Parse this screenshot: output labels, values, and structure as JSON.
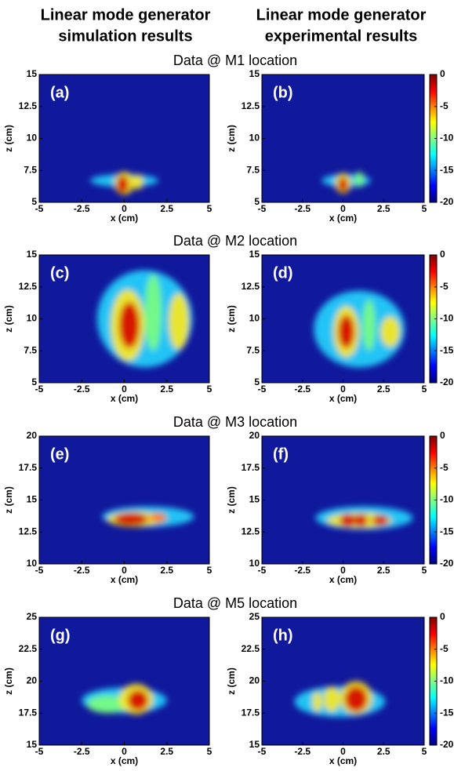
{
  "column_titles": [
    [
      "Linear mode generator",
      "simulation results"
    ],
    [
      "Linear mode generator",
      "experimental results"
    ]
  ],
  "row_titles": [
    "Data @ M1 location",
    "Data @ M2 location",
    "Data @ M3 location",
    "Data @ M5 location"
  ],
  "chart_data": [
    {
      "type": "heatmap",
      "panel": "(a)",
      "xlabel": "x (cm)",
      "ylabel": "z (cm)",
      "xlim": [
        -5,
        5
      ],
      "xticks": [
        -5,
        -2.5,
        0,
        2.5,
        5
      ],
      "ylim": [
        5,
        15
      ],
      "yticks": [
        5,
        7.5,
        10,
        12.5,
        15
      ]
    },
    {
      "type": "heatmap",
      "panel": "(b)",
      "xlabel": "x (cm)",
      "ylabel": "z (cm)",
      "xlim": [
        -5,
        5
      ],
      "xticks": [
        -5,
        -2.5,
        0,
        2.5,
        5
      ],
      "ylim": [
        5,
        15
      ],
      "yticks": [
        5,
        7.5,
        10,
        12.5,
        15
      ],
      "colorbar": {
        "lim": [
          -20,
          0
        ],
        "ticks": [
          0,
          -5,
          -10,
          -15,
          -20
        ]
      }
    },
    {
      "type": "heatmap",
      "panel": "(c)",
      "xlabel": "x (cm)",
      "ylabel": "z (cm)",
      "xlim": [
        -5,
        5
      ],
      "xticks": [
        -5,
        -2.5,
        0,
        2.5,
        5
      ],
      "ylim": [
        5,
        15
      ],
      "yticks": [
        5,
        7.5,
        10,
        12.5,
        15
      ]
    },
    {
      "type": "heatmap",
      "panel": "(d)",
      "xlabel": "x (cm)",
      "ylabel": "z (cm)",
      "xlim": [
        -5,
        5
      ],
      "xticks": [
        -5,
        -2.5,
        0,
        2.5,
        5
      ],
      "ylim": [
        5,
        15
      ],
      "yticks": [
        5,
        7.5,
        10,
        12.5,
        15
      ],
      "colorbar": {
        "lim": [
          -20,
          0
        ],
        "ticks": [
          0,
          -5,
          -10,
          -15,
          -20
        ]
      }
    },
    {
      "type": "heatmap",
      "panel": "(e)",
      "xlabel": "x (cm)",
      "ylabel": "z (cm)",
      "xlim": [
        -5,
        5
      ],
      "xticks": [
        -5,
        -2.5,
        0,
        2.5,
        5
      ],
      "ylim": [
        10,
        20
      ],
      "yticks": [
        10,
        12.5,
        15,
        17.5,
        20
      ]
    },
    {
      "type": "heatmap",
      "panel": "(f)",
      "xlabel": "x (cm)",
      "ylabel": "z (cm)",
      "xlim": [
        -5,
        5
      ],
      "xticks": [
        -5,
        -2.5,
        0,
        2.5,
        5
      ],
      "ylim": [
        10,
        20
      ],
      "yticks": [
        10,
        12.5,
        15,
        17.5,
        20
      ],
      "colorbar": {
        "lim": [
          -20,
          0
        ],
        "ticks": [
          0,
          -5,
          -10,
          -15,
          -20
        ]
      }
    },
    {
      "type": "heatmap",
      "panel": "(g)",
      "xlabel": "x (cm)",
      "ylabel": "z (cm)",
      "xlim": [
        -5,
        5
      ],
      "xticks": [
        -5,
        -2.5,
        0,
        2.5,
        5
      ],
      "ylim": [
        15,
        25
      ],
      "yticks": [
        15,
        17.5,
        20,
        22.5,
        25
      ]
    },
    {
      "type": "heatmap",
      "panel": "(h)",
      "xlabel": "x (cm)",
      "ylabel": "z (cm)",
      "xlim": [
        -5,
        5
      ],
      "xticks": [
        -5,
        -2.5,
        0,
        2.5,
        5
      ],
      "ylim": [
        15,
        25
      ],
      "yticks": [
        15,
        17.5,
        20,
        22.5,
        25
      ],
      "colorbar": {
        "lim": [
          -20,
          0
        ],
        "ticks": [
          0,
          -5,
          -10,
          -15,
          -20
        ]
      }
    }
  ]
}
